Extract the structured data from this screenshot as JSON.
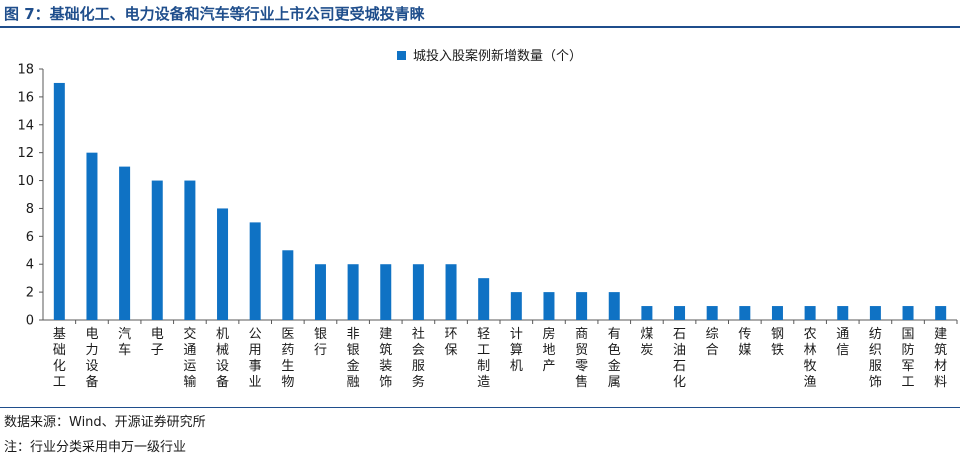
{
  "header": {
    "title": "图 7：基础化工、电力设备和汽车等行业上市公司更受城投青睐"
  },
  "footer": {
    "source": "数据来源：Wind、开源证券研究所",
    "note": "注：行业分类采用申万一级行业"
  },
  "colors": {
    "bar": "#0f72c4",
    "title": "#1f4e8c",
    "axis": "#595959"
  },
  "chart_data": {
    "type": "bar",
    "title": "",
    "xlabel": "",
    "ylabel": "",
    "ylim": [
      0,
      18
    ],
    "yticks": [
      0,
      2,
      4,
      6,
      8,
      10,
      12,
      14,
      16,
      18
    ],
    "grid": false,
    "legend_position": "top-center",
    "categories": [
      "基础化工",
      "电力设备",
      "汽车",
      "电子",
      "交通运输",
      "机械设备",
      "公用事业",
      "医药生物",
      "银行",
      "非银金融",
      "建筑装饰",
      "社会服务",
      "环保",
      "轻工制造",
      "计算机",
      "房地产",
      "商贸零售",
      "有色金属",
      "煤炭",
      "石油石化",
      "综合",
      "传媒",
      "钢铁",
      "农林牧渔",
      "通信",
      "纺织服饰",
      "国防军工",
      "建筑材料"
    ],
    "series": [
      {
        "name": "城投入股案例新增数量（个）",
        "values": [
          17,
          12,
          11,
          10,
          10,
          8,
          7,
          5,
          4,
          4,
          4,
          4,
          4,
          3,
          2,
          2,
          2,
          2,
          1,
          1,
          1,
          1,
          1,
          1,
          1,
          1,
          1,
          1
        ]
      }
    ]
  }
}
